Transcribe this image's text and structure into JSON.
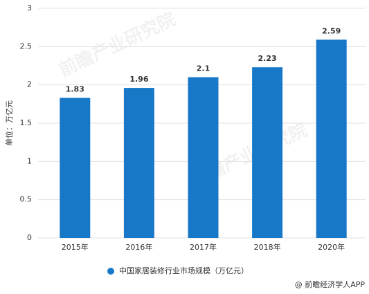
{
  "chart_data": {
    "type": "bar",
    "categories": [
      "2015年",
      "2016年",
      "2017年",
      "2018年",
      "2020年"
    ],
    "values": [
      1.83,
      1.96,
      2.1,
      2.23,
      2.59
    ],
    "color": "#1878c8",
    "ylim": [
      0,
      3
    ],
    "yticks": [
      0,
      0.5,
      1,
      1.5,
      2,
      2.5,
      3
    ],
    "grid": true,
    "y_label": "单位：万亿元",
    "legend": "中国家居装修行业市场规模（万亿元）",
    "watermark": "前瞻产业研究院",
    "footer": "@ 前瞻经济学人APP"
  }
}
